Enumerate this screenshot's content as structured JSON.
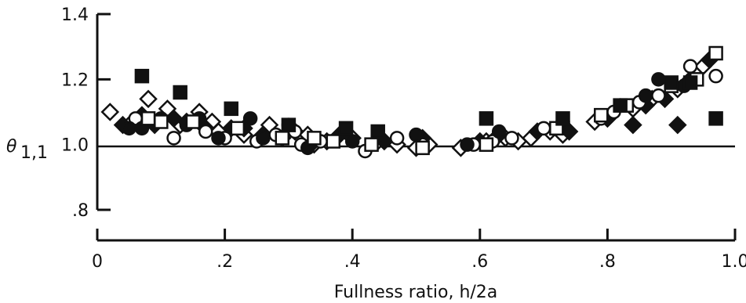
{
  "chart_data": {
    "type": "scatter",
    "title": "",
    "xlabel": "Fullness ratio, h/2a",
    "ylabel": "θ1,1",
    "xlim": [
      0,
      1.0
    ],
    "ylim": [
      0.8,
      1.4
    ],
    "reference_line_y": 1.0,
    "grid": false,
    "legend": "none",
    "x_tick_labels": [
      {
        "value": 0,
        "label": "0"
      },
      {
        "value": 0.2,
        "label": ".2"
      },
      {
        "value": 0.4,
        "label": ".4"
      },
      {
        "value": 0.6,
        "label": ".6"
      },
      {
        "value": 0.8,
        "label": ".8"
      },
      {
        "value": 1.0,
        "label": "1.0"
      }
    ],
    "y_tick_labels": [
      {
        "value": 0.8,
        "label": ".8"
      },
      {
        "value": 1.0,
        "label": "1.0"
      },
      {
        "value": 1.2,
        "label": "1.2"
      },
      {
        "value": 1.4,
        "label": "1.4"
      }
    ],
    "marker_color": "#111111",
    "series": [
      {
        "marker": "diamond-open",
        "points": [
          [
            0.02,
            1.1
          ],
          [
            0.05,
            1.06
          ],
          [
            0.08,
            1.14
          ],
          [
            0.11,
            1.11
          ],
          [
            0.13,
            1.06
          ],
          [
            0.16,
            1.1
          ],
          [
            0.18,
            1.07
          ],
          [
            0.19,
            1.04
          ],
          [
            0.23,
            1.03
          ],
          [
            0.27,
            1.06
          ],
          [
            0.29,
            1.02
          ],
          [
            0.33,
            1.03
          ],
          [
            0.34,
            1.0
          ],
          [
            0.36,
            1.01
          ],
          [
            0.4,
            1.02
          ],
          [
            0.44,
            1.01
          ],
          [
            0.47,
            1.0
          ],
          [
            0.5,
            0.99
          ],
          [
            0.52,
            1.0
          ],
          [
            0.57,
            0.99
          ],
          [
            0.61,
            1.01
          ],
          [
            0.64,
            1.02
          ],
          [
            0.66,
            1.01
          ],
          [
            0.68,
            1.02
          ],
          [
            0.71,
            1.04
          ],
          [
            0.73,
            1.03
          ],
          [
            0.78,
            1.07
          ],
          [
            0.8,
            1.08
          ],
          [
            0.84,
            1.11
          ],
          [
            0.87,
            1.14
          ],
          [
            0.91,
            1.17
          ],
          [
            0.95,
            1.24
          ]
        ]
      },
      {
        "marker": "diamond-filled",
        "points": [
          [
            0.04,
            1.06
          ],
          [
            0.07,
            1.09
          ],
          [
            0.09,
            1.06
          ],
          [
            0.12,
            1.08
          ],
          [
            0.14,
            1.07
          ],
          [
            0.17,
            1.05
          ],
          [
            0.21,
            1.05
          ],
          [
            0.23,
            1.05
          ],
          [
            0.26,
            1.03
          ],
          [
            0.31,
            1.04
          ],
          [
            0.34,
            1.01
          ],
          [
            0.38,
            1.03
          ],
          [
            0.45,
            1.01
          ],
          [
            0.51,
            1.02
          ],
          [
            0.6,
            1.01
          ],
          [
            0.63,
            1.03
          ],
          [
            0.69,
            1.04
          ],
          [
            0.74,
            1.04
          ],
          [
            0.8,
            1.08
          ],
          [
            0.84,
            1.06
          ],
          [
            0.86,
            1.12
          ],
          [
            0.89,
            1.14
          ],
          [
            0.91,
            1.06
          ],
          [
            0.93,
            1.2
          ],
          [
            0.96,
            1.26
          ]
        ]
      },
      {
        "marker": "circle-open",
        "points": [
          [
            0.06,
            1.08
          ],
          [
            0.12,
            1.02
          ],
          [
            0.17,
            1.04
          ],
          [
            0.2,
            1.02
          ],
          [
            0.25,
            1.01
          ],
          [
            0.28,
            1.03
          ],
          [
            0.31,
            1.04
          ],
          [
            0.32,
            1.0
          ],
          [
            0.35,
            1.01
          ],
          [
            0.42,
            0.98
          ],
          [
            0.47,
            1.02
          ],
          [
            0.51,
            1.0
          ],
          [
            0.59,
            1.0
          ],
          [
            0.62,
            1.01
          ],
          [
            0.65,
            1.02
          ],
          [
            0.7,
            1.05
          ],
          [
            0.79,
            1.08
          ],
          [
            0.81,
            1.1
          ],
          [
            0.85,
            1.13
          ],
          [
            0.88,
            1.15
          ],
          [
            0.93,
            1.24
          ],
          [
            0.97,
            1.21
          ]
        ]
      },
      {
        "marker": "circle-filled",
        "points": [
          [
            0.05,
            1.05
          ],
          [
            0.07,
            1.05
          ],
          [
            0.1,
            1.08
          ],
          [
            0.14,
            1.06
          ],
          [
            0.16,
            1.08
          ],
          [
            0.19,
            1.02
          ],
          [
            0.24,
            1.08
          ],
          [
            0.26,
            1.02
          ],
          [
            0.3,
            1.06
          ],
          [
            0.33,
            0.99
          ],
          [
            0.4,
            1.01
          ],
          [
            0.44,
            1.03
          ],
          [
            0.5,
            1.03
          ],
          [
            0.58,
            1.0
          ],
          [
            0.63,
            1.04
          ],
          [
            0.73,
            1.07
          ],
          [
            0.82,
            1.12
          ],
          [
            0.86,
            1.15
          ],
          [
            0.88,
            1.2
          ],
          [
            0.92,
            1.18
          ]
        ]
      },
      {
        "marker": "square-open",
        "points": [
          [
            0.08,
            1.08
          ],
          [
            0.1,
            1.07
          ],
          [
            0.15,
            1.07
          ],
          [
            0.22,
            1.05
          ],
          [
            0.29,
            1.02
          ],
          [
            0.34,
            1.02
          ],
          [
            0.37,
            1.01
          ],
          [
            0.43,
            1.0
          ],
          [
            0.51,
            0.99
          ],
          [
            0.61,
            1.0
          ],
          [
            0.72,
            1.05
          ],
          [
            0.79,
            1.09
          ],
          [
            0.83,
            1.12
          ],
          [
            0.9,
            1.18
          ],
          [
            0.94,
            1.2
          ],
          [
            0.97,
            1.28
          ]
        ]
      },
      {
        "marker": "square-filled",
        "points": [
          [
            0.07,
            1.21
          ],
          [
            0.13,
            1.16
          ],
          [
            0.21,
            1.11
          ],
          [
            0.3,
            1.06
          ],
          [
            0.39,
            1.05
          ],
          [
            0.44,
            1.04
          ],
          [
            0.61,
            1.08
          ],
          [
            0.73,
            1.08
          ],
          [
            0.82,
            1.12
          ],
          [
            0.9,
            1.19
          ],
          [
            0.93,
            1.19
          ],
          [
            0.97,
            1.08
          ]
        ]
      }
    ]
  }
}
